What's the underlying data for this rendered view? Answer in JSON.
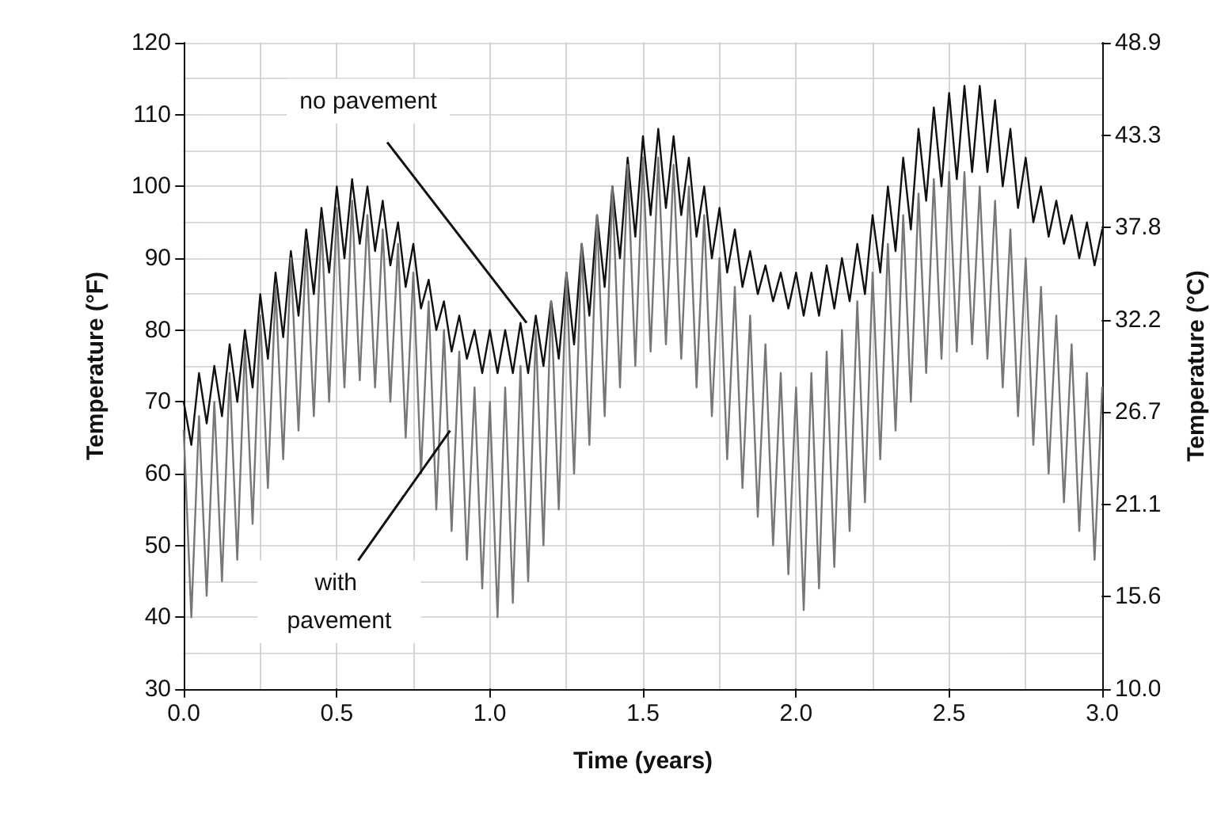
{
  "chart_data": {
    "type": "line",
    "xlabel": "Time (years)",
    "ylabel": "Temperature (°F)",
    "y2label": "Temperature (°C)",
    "x": [
      0,
      0.025,
      0.05,
      0.075,
      0.1,
      0.125,
      0.15,
      0.175,
      0.2,
      0.225,
      0.25,
      0.275,
      0.3,
      0.325,
      0.35,
      0.375,
      0.4,
      0.425,
      0.45,
      0.475,
      0.5,
      0.525,
      0.55,
      0.575,
      0.6,
      0.625,
      0.65,
      0.675,
      0.7,
      0.725,
      0.75,
      0.775,
      0.8,
      0.825,
      0.85,
      0.875,
      0.9,
      0.925,
      0.95,
      0.975,
      1,
      1.025,
      1.05,
      1.075,
      1.1,
      1.125,
      1.15,
      1.175,
      1.2,
      1.225,
      1.25,
      1.275,
      1.3,
      1.325,
      1.35,
      1.375,
      1.4,
      1.425,
      1.45,
      1.475,
      1.5,
      1.525,
      1.55,
      1.575,
      1.6,
      1.625,
      1.65,
      1.675,
      1.7,
      1.725,
      1.75,
      1.775,
      1.8,
      1.825,
      1.85,
      1.875,
      1.9,
      1.925,
      1.95,
      1.975,
      2,
      2.025,
      2.05,
      2.075,
      2.1,
      2.125,
      2.15,
      2.175,
      2.2,
      2.225,
      2.25,
      2.275,
      2.3,
      2.325,
      2.35,
      2.375,
      2.4,
      2.425,
      2.45,
      2.475,
      2.5,
      2.525,
      2.55,
      2.575,
      2.6,
      2.625,
      2.65,
      2.675,
      2.7,
      2.725,
      2.75,
      2.775,
      2.8,
      2.825,
      2.85,
      2.875,
      2.9,
      2.925,
      2.95,
      2.975,
      3
    ],
    "series": [
      {
        "color": "#111111",
        "values": [
          70,
          64,
          74,
          67,
          75,
          68,
          78,
          70,
          80,
          72,
          85,
          76,
          88,
          79,
          91,
          82,
          94,
          85,
          97,
          88,
          100,
          90,
          101,
          92,
          100,
          91,
          98,
          89,
          95,
          86,
          92,
          83,
          87,
          80,
          84,
          77,
          82,
          76,
          80,
          74,
          80,
          74,
          80,
          74,
          81,
          74,
          82,
          75,
          84,
          76,
          88,
          78,
          92,
          82,
          96,
          86,
          100,
          90,
          104,
          93,
          107,
          96,
          108,
          97,
          107,
          96,
          104,
          93,
          100,
          90,
          97,
          88,
          94,
          86,
          91,
          85,
          89,
          84,
          88,
          83,
          88,
          82,
          88,
          82,
          89,
          83,
          90,
          84,
          92,
          85,
          96,
          88,
          100,
          91,
          104,
          94,
          108,
          98,
          111,
          100,
          113,
          101,
          114,
          102,
          114,
          102,
          112,
          100,
          108,
          97,
          104,
          95,
          100,
          93,
          98,
          92,
          96,
          90,
          95,
          89,
          94
        ]
      },
      {
        "color": "#777777",
        "values": [
          66,
          40,
          68,
          43,
          70,
          45,
          74,
          48,
          78,
          53,
          82,
          58,
          86,
          62,
          90,
          66,
          92,
          68,
          95,
          70,
          97,
          72,
          98,
          73,
          96,
          72,
          94,
          70,
          92,
          65,
          88,
          60,
          84,
          55,
          80,
          52,
          77,
          48,
          72,
          44,
          70,
          40,
          72,
          42,
          75,
          45,
          80,
          50,
          84,
          55,
          88,
          60,
          92,
          64,
          96,
          68,
          100,
          72,
          103,
          75,
          104,
          77,
          104,
          78,
          103,
          76,
          100,
          72,
          96,
          68,
          90,
          62,
          86,
          58,
          82,
          54,
          78,
          50,
          74,
          46,
          72,
          41,
          74,
          44,
          77,
          47,
          80,
          52,
          84,
          56,
          88,
          62,
          92,
          66,
          96,
          70,
          99,
          74,
          101,
          76,
          102,
          77,
          102,
          78,
          100,
          76,
          98,
          72,
          94,
          68,
          90,
          64,
          86,
          60,
          82,
          56,
          78,
          52,
          74,
          48,
          72
        ]
      }
    ],
    "xlim": [
      0,
      3
    ],
    "xticks": [
      {
        "value": 0,
        "label": "0.0"
      },
      0.5,
      {
        "value": 1,
        "label": "1.0"
      },
      1.5,
      {
        "value": 2,
        "label": "2.0"
      },
      2.5,
      {
        "value": 3,
        "label": "3.0"
      }
    ],
    "ylim": [
      30,
      120
    ],
    "yticks": [
      30,
      40,
      50,
      60,
      70,
      80,
      90,
      100,
      110,
      120
    ],
    "y2lim": [
      10.0,
      48.9
    ],
    "y2ticks": [
      {
        "value": 10,
        "label": "10.0"
      },
      15.6,
      21.1,
      26.7,
      32.2,
      37.8,
      43.3,
      48.9
    ],
    "grid": true,
    "marker": "none",
    "line_style": "solid",
    "annotations": [
      {
        "text": "no pavement",
        "x": 1.12,
        "y": 81
      },
      {
        "text": "with pavement",
        "x": 0.87,
        "y": 66
      }
    ]
  }
}
